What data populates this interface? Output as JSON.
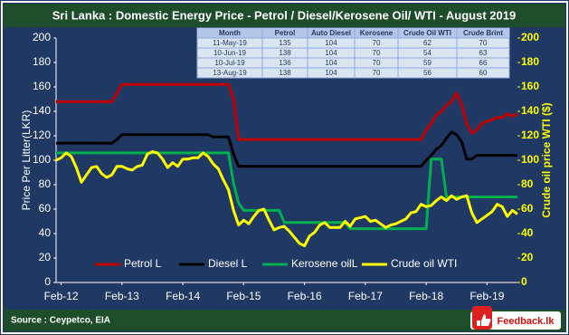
{
  "chart_data": {
    "type": "line",
    "title": "Sri Lanka : Domestic Energy Price - Petrol / Diesel/Kerosene Oil/ WTI - August 2019",
    "y_label": "Price Per Litter(LKR)",
    "y2_label": "Crude oil price WTI ($)",
    "source": "Source : Ceypetco,  EIA",
    "logo": "Feedback.lk",
    "grid": false,
    "ylim": [
      0,
      200
    ],
    "yticks": [
      0,
      20,
      40,
      60,
      80,
      100,
      120,
      140,
      160,
      180,
      200
    ],
    "y2lim": [
      0,
      200
    ],
    "y2ticks": [
      0,
      20,
      40,
      60,
      80,
      100,
      120,
      140,
      160,
      180,
      200
    ],
    "categories": [
      null,
      "Feb-12",
      null,
      null,
      null,
      null,
      null,
      null,
      null,
      null,
      null,
      null,
      null,
      "Feb-13",
      null,
      null,
      null,
      null,
      null,
      null,
      null,
      null,
      null,
      null,
      null,
      "Feb-14",
      null,
      null,
      null,
      null,
      null,
      null,
      null,
      null,
      null,
      null,
      null,
      "Feb-15",
      null,
      null,
      null,
      null,
      null,
      null,
      null,
      null,
      null,
      null,
      null,
      "Feb-16",
      null,
      null,
      null,
      null,
      null,
      null,
      null,
      null,
      null,
      null,
      null,
      "Feb-17",
      null,
      null,
      null,
      null,
      null,
      null,
      null,
      null,
      null,
      null,
      null,
      "Feb-18",
      null,
      null,
      null,
      null,
      null,
      null,
      null,
      null,
      null,
      null,
      null,
      "Feb-19",
      null,
      null,
      null,
      null,
      null,
      null
    ],
    "series": [
      {
        "name": "Petrol L",
        "color": "#c00000",
        "values": [
          148,
          148,
          148,
          148,
          148,
          148,
          148,
          148,
          148,
          148,
          148,
          148,
          155,
          162,
          162,
          162,
          162,
          162,
          162,
          162,
          162,
          162,
          162,
          162,
          162,
          162,
          162,
          162,
          162,
          162,
          162,
          162,
          162,
          162,
          162,
          150,
          117,
          117,
          117,
          117,
          117,
          117,
          117,
          117,
          117,
          117,
          117,
          117,
          117,
          117,
          117,
          117,
          117,
          117,
          117,
          117,
          117,
          117,
          117,
          117,
          117,
          117,
          117,
          117,
          117,
          117,
          117,
          117,
          117,
          117,
          117,
          117,
          117,
          125,
          130,
          137,
          140,
          145,
          148,
          155,
          145,
          130,
          122,
          125,
          130,
          132,
          133,
          135,
          135,
          138,
          136,
          138
        ]
      },
      {
        "name": "Diesel L",
        "color": "#000000",
        "values": [
          114,
          114,
          114,
          114,
          114,
          114,
          114,
          114,
          114,
          114,
          114,
          114,
          117,
          121,
          121,
          121,
          121,
          121,
          121,
          121,
          121,
          121,
          121,
          121,
          121,
          121,
          121,
          121,
          121,
          121,
          121,
          119,
          119,
          119,
          119,
          105,
          95,
          95,
          95,
          95,
          95,
          95,
          95,
          95,
          95,
          95,
          95,
          95,
          95,
          95,
          95,
          95,
          95,
          95,
          95,
          95,
          95,
          95,
          95,
          95,
          95,
          95,
          95,
          95,
          95,
          95,
          95,
          95,
          95,
          95,
          95,
          95,
          95,
          100,
          104,
          109,
          112,
          118,
          123,
          121,
          115,
          101,
          101,
          104,
          104,
          104,
          104,
          104,
          104,
          104,
          104,
          104
        ]
      },
      {
        "name": "Kerosene oilL",
        "color": "#00b050",
        "values": [
          106,
          106,
          106,
          106,
          106,
          106,
          106,
          106,
          106,
          106,
          106,
          106,
          106,
          106,
          106,
          106,
          106,
          106,
          106,
          106,
          106,
          106,
          106,
          106,
          106,
          106,
          106,
          106,
          106,
          106,
          106,
          106,
          106,
          106,
          106,
          81,
          65,
          59,
          59,
          59,
          59,
          59,
          59,
          59,
          59,
          49,
          49,
          49,
          49,
          49,
          49,
          49,
          49,
          49,
          49,
          49,
          49,
          49,
          44,
          44,
          44,
          44,
          44,
          44,
          44,
          44,
          44,
          44,
          44,
          44,
          44,
          44,
          44,
          44,
          101,
          101,
          101,
          70,
          70,
          70,
          70,
          70,
          70,
          70,
          70,
          70,
          70,
          70,
          70,
          70,
          70,
          70
        ]
      },
      {
        "name": "Crude oil WTI",
        "color": "#ffff00",
        "axis": "y2",
        "values": [
          100,
          102,
          106,
          103,
          94,
          82,
          88,
          94,
          95,
          89,
          86,
          88,
          95,
          95,
          93,
          92,
          95,
          96,
          105,
          107,
          106,
          101,
          94,
          98,
          95,
          101,
          101,
          102,
          102,
          106,
          103,
          97,
          93,
          84,
          76,
          59,
          47,
          51,
          48,
          54,
          59,
          60,
          51,
          43,
          45,
          46,
          42,
          37,
          32,
          30,
          38,
          41,
          47,
          49,
          45,
          45,
          45,
          50,
          46,
          52,
          53,
          54,
          50,
          51,
          48,
          45,
          47,
          48,
          50,
          52,
          57,
          58,
          64,
          62,
          63,
          67,
          70,
          67,
          71,
          68,
          70,
          71,
          57,
          49,
          52,
          55,
          58,
          64,
          62,
          54,
          59,
          56
        ]
      }
    ],
    "table": {
      "header": [
        "Month",
        "Petrol",
        "Auto Diesel",
        "Kerosene",
        "Crude Oil WTI",
        "Crude Brint"
      ],
      "rows": [
        [
          "11-May-19",
          "135",
          "104",
          "70",
          "62",
          "70"
        ],
        [
          "10-Jun-19",
          "138",
          "104",
          "70",
          "54",
          "63"
        ],
        [
          "10-Jul-19",
          "136",
          "104",
          "70",
          "59",
          "66"
        ],
        [
          "13-Aug-19",
          "138",
          "104",
          "70",
          "56",
          "60"
        ]
      ]
    }
  }
}
